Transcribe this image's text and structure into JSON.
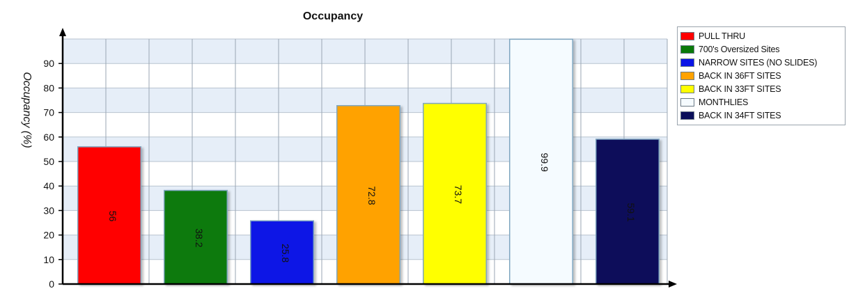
{
  "chart_data": {
    "type": "bar",
    "title": "Occupancy",
    "ylabel": "Occupancy (%)",
    "xlabel": "",
    "ylim": [
      0,
      100
    ],
    "yticks": [
      0,
      10,
      20,
      30,
      40,
      50,
      60,
      70,
      80,
      90
    ],
    "grid": true,
    "legend_position": "right",
    "categories": [
      "PULL THRU",
      "700's Oversized Sites",
      "NARROW SITES (NO SLIDES)",
      "BACK IN 36FT SITES",
      "BACK IN 33FT SITES",
      "MONTHLIES",
      "BACK IN 34FT SITES"
    ],
    "values": [
      56,
      38.2,
      25.8,
      72.8,
      73.7,
      99.9,
      59.1
    ],
    "data_labels": [
      "56",
      "38.2",
      "25.8",
      "72.8",
      "73.7",
      "99.9",
      "59.1"
    ],
    "colors": [
      "#ff0000",
      "#0a7a0a",
      "#0a14e6",
      "#ffa200",
      "#ffff00",
      "#f5fbff",
      "#0a0f5a"
    ]
  }
}
